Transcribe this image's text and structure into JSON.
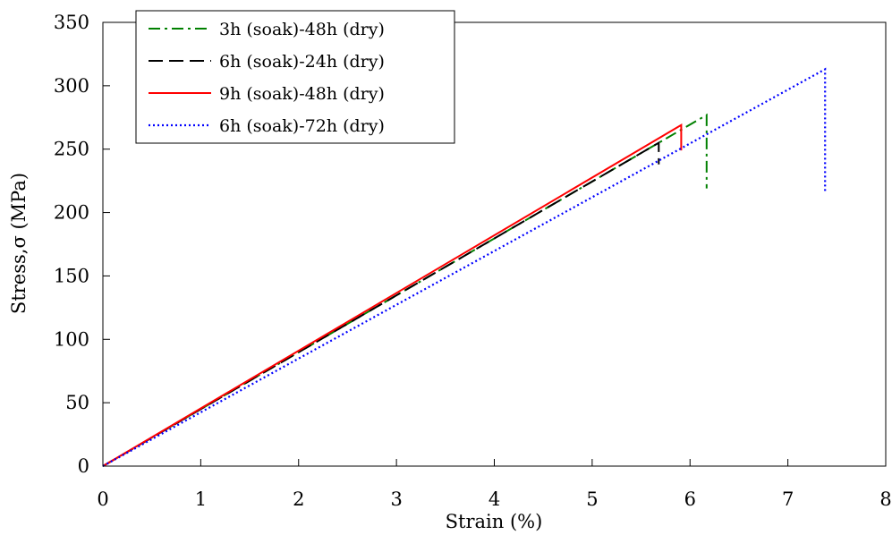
{
  "chart_data": {
    "type": "line",
    "title": "",
    "xlabel": "Strain (%)",
    "ylabel": "Stress,σ (MPa)",
    "xlim": [
      0,
      8
    ],
    "ylim": [
      0,
      350
    ],
    "x_ticks": [
      "0",
      "1",
      "2",
      "3",
      "4",
      "5",
      "6",
      "7",
      "8"
    ],
    "y_ticks": [
      "0",
      "50",
      "100",
      "150",
      "200",
      "250",
      "300",
      "350"
    ],
    "grid": false,
    "legend_position": "top-left",
    "series": [
      {
        "name": "3h (soak)-48h (dry)",
        "color": "#008000",
        "dash": "dash-dot",
        "points": [
          [
            0,
            0
          ],
          [
            6.17,
            277
          ],
          [
            6.17,
            219
          ]
        ]
      },
      {
        "name": "6h (soak)-24h (dry)",
        "color": "#000000",
        "dash": "dashed",
        "points": [
          [
            0,
            0
          ],
          [
            5.68,
            255
          ],
          [
            5.68,
            238
          ]
        ]
      },
      {
        "name": "9h (soak)-48h (dry)",
        "color": "#ff0000",
        "dash": "solid",
        "points": [
          [
            0,
            0
          ],
          [
            5.91,
            269
          ],
          [
            5.91,
            249
          ]
        ]
      },
      {
        "name": "6h (soak)-72h (dry)",
        "color": "#0000ff",
        "dash": "dotted",
        "points": [
          [
            0,
            0
          ],
          [
            7.38,
            313
          ],
          [
            7.38,
            216
          ]
        ]
      }
    ]
  }
}
